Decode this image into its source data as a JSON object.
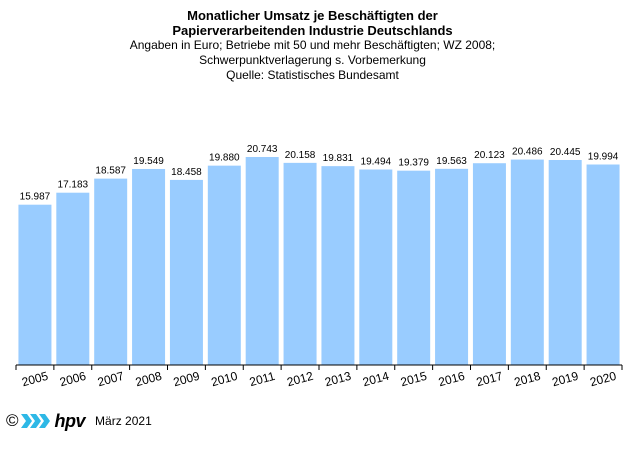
{
  "header": {
    "title_lines": [
      "Monatlicher Umsatz je Beschäftigten der",
      "Papierverarbeitenden Industrie Deutschlands"
    ],
    "subtitle_lines": [
      "Angaben  in Euro; Betriebe mit 50 und mehr Beschäftigten; WZ 2008;",
      "Schwerpunktverlagerung   s. Vorbemerkung",
      "Quelle:  Statistisches Bundesamt"
    ]
  },
  "chart_data": {
    "type": "bar",
    "categories": [
      "2005",
      "2006",
      "2007",
      "2008",
      "2009",
      "2010",
      "2011",
      "2012",
      "2013",
      "2014",
      "2015",
      "2016",
      "2017",
      "2018",
      "2019",
      "2020"
    ],
    "values": [
      15987,
      17183,
      18587,
      19549,
      18458,
      19880,
      20743,
      20158,
      19831,
      19494,
      19379,
      19563,
      20123,
      20486,
      20445,
      19994
    ],
    "value_labels": [
      "15.987",
      "17.183",
      "18.587",
      "19.549",
      "18.458",
      "19.880",
      "20.743",
      "20.158",
      "19.831",
      "19.494",
      "19.379",
      "19.563",
      "20.123",
      "20.486",
      "20.445",
      "19.994"
    ],
    "ylim": [
      0,
      22000
    ],
    "bar_color": "#99ccff",
    "grid": false,
    "legend": "none"
  },
  "footer": {
    "copyright": "©",
    "logo_text": "hpv",
    "date": "März 2021"
  },
  "colors": {
    "bar": "#99ccff",
    "logo_blue": "#2eb8e6",
    "axis": "#000000"
  }
}
